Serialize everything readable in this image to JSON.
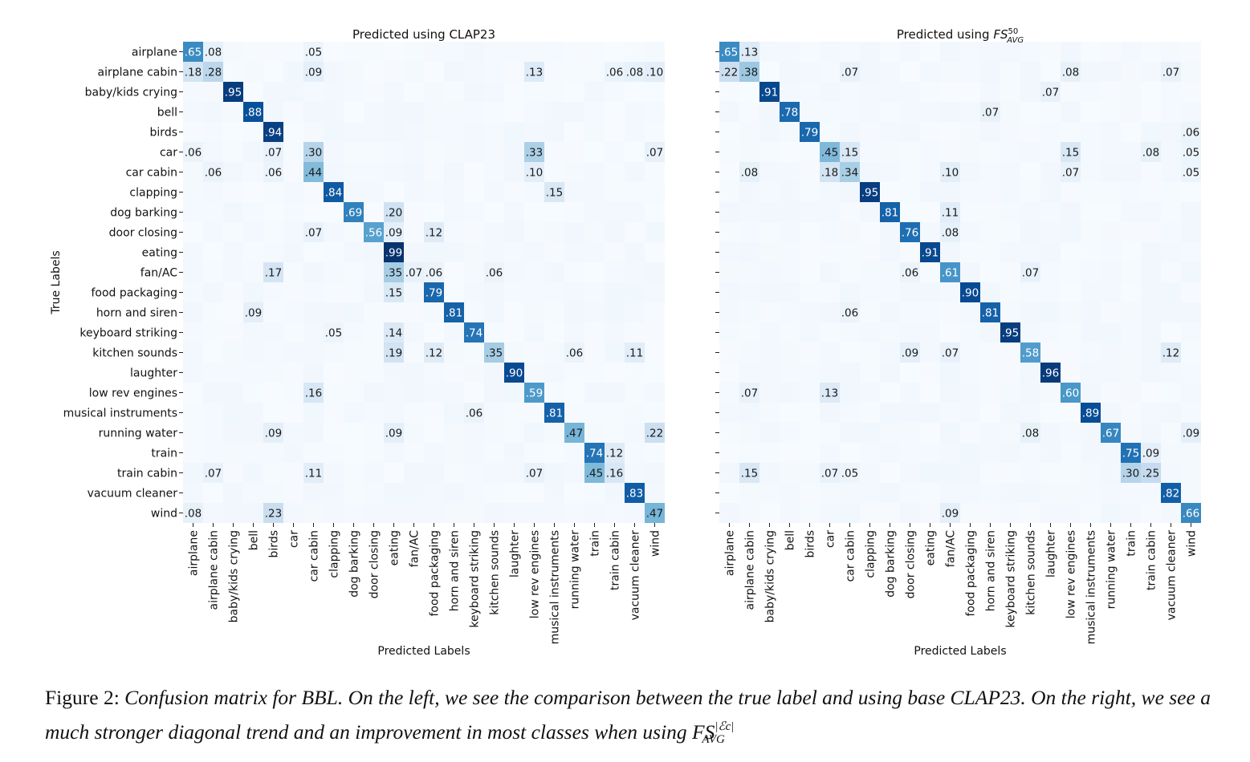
{
  "labels": [
    "airplane",
    "airplane cabin",
    "baby/kids crying",
    "bell",
    "birds",
    "car",
    "car cabin",
    "clapping",
    "dog barking",
    "door closing",
    "eating",
    "fan/AC",
    "food packaging",
    "horn and siren",
    "keyboard striking",
    "kitchen sounds",
    "laughter",
    "low rev engines",
    "musical instruments",
    "running water",
    "train",
    "train cabin",
    "vacuum cleaner",
    "wind"
  ],
  "chart_data": [
    {
      "type": "heatmap",
      "title_prefix": "Predicted using CLAP23",
      "title_math_base": "",
      "title_math_sup": "",
      "title_math_sub": "",
      "xlabel": "Predicted Labels",
      "ylabel": "True Labels",
      "show_row_labels": true,
      "colormap": "Blues",
      "value_range": [
        0,
        1
      ],
      "annotated_cells": [
        [
          0,
          0,
          ".65"
        ],
        [
          0,
          1,
          ".08"
        ],
        [
          0,
          6,
          ".05"
        ],
        [
          1,
          0,
          ".18"
        ],
        [
          1,
          1,
          ".28"
        ],
        [
          1,
          6,
          ".09"
        ],
        [
          1,
          17,
          ".13"
        ],
        [
          1,
          21,
          ".06"
        ],
        [
          1,
          22,
          ".08"
        ],
        [
          1,
          23,
          ".10"
        ],
        [
          2,
          2,
          ".95"
        ],
        [
          3,
          3,
          ".88"
        ],
        [
          4,
          4,
          ".94"
        ],
        [
          5,
          0,
          ".06"
        ],
        [
          5,
          4,
          ".07"
        ],
        [
          5,
          6,
          ".30"
        ],
        [
          5,
          17,
          ".33"
        ],
        [
          5,
          23,
          ".07"
        ],
        [
          6,
          1,
          ".06"
        ],
        [
          6,
          4,
          ".06"
        ],
        [
          6,
          6,
          ".44"
        ],
        [
          6,
          17,
          ".10"
        ],
        [
          7,
          7,
          ".84"
        ],
        [
          7,
          18,
          ".15"
        ],
        [
          8,
          8,
          ".69"
        ],
        [
          8,
          10,
          ".20"
        ],
        [
          9,
          6,
          ".07"
        ],
        [
          9,
          9,
          ".56"
        ],
        [
          9,
          10,
          ".09"
        ],
        [
          9,
          12,
          ".12"
        ],
        [
          10,
          10,
          ".99"
        ],
        [
          11,
          4,
          ".17"
        ],
        [
          11,
          10,
          ".35"
        ],
        [
          11,
          11,
          ".07"
        ],
        [
          11,
          12,
          ".06"
        ],
        [
          11,
          15,
          ".06"
        ],
        [
          12,
          10,
          ".15"
        ],
        [
          12,
          12,
          ".79"
        ],
        [
          13,
          3,
          ".09"
        ],
        [
          13,
          13,
          ".81"
        ],
        [
          14,
          7,
          ".05"
        ],
        [
          14,
          10,
          ".14"
        ],
        [
          14,
          14,
          ".74"
        ],
        [
          15,
          10,
          ".19"
        ],
        [
          15,
          12,
          ".12"
        ],
        [
          15,
          15,
          ".35"
        ],
        [
          15,
          19,
          ".06"
        ],
        [
          15,
          22,
          ".11"
        ],
        [
          16,
          16,
          ".90"
        ],
        [
          17,
          6,
          ".16"
        ],
        [
          17,
          17,
          ".59"
        ],
        [
          18,
          14,
          ".06"
        ],
        [
          18,
          18,
          ".81"
        ],
        [
          19,
          4,
          ".09"
        ],
        [
          19,
          10,
          ".09"
        ],
        [
          19,
          19,
          ".47"
        ],
        [
          19,
          23,
          ".22"
        ],
        [
          20,
          20,
          ".74"
        ],
        [
          20,
          21,
          ".12"
        ],
        [
          21,
          1,
          ".07"
        ],
        [
          21,
          6,
          ".11"
        ],
        [
          21,
          17,
          ".07"
        ],
        [
          21,
          20,
          ".45"
        ],
        [
          21,
          21,
          ".16"
        ],
        [
          22,
          22,
          ".83"
        ],
        [
          23,
          0,
          ".08"
        ],
        [
          23,
          4,
          ".23"
        ],
        [
          23,
          23,
          ".47"
        ]
      ]
    },
    {
      "type": "heatmap",
      "title_prefix": "Predicted using ",
      "title_math_base": "FS",
      "title_math_sup": "50",
      "title_math_sub": "AVG",
      "xlabel": "Predicted Labels",
      "ylabel": "",
      "show_row_labels": false,
      "colormap": "Blues",
      "value_range": [
        0,
        1
      ],
      "annotated_cells": [
        [
          0,
          0,
          ".65"
        ],
        [
          0,
          1,
          ".13"
        ],
        [
          1,
          0,
          ".22"
        ],
        [
          1,
          1,
          ".38"
        ],
        [
          1,
          6,
          ".07"
        ],
        [
          1,
          17,
          ".08"
        ],
        [
          1,
          22,
          ".07"
        ],
        [
          2,
          2,
          ".91"
        ],
        [
          2,
          16,
          ".07"
        ],
        [
          3,
          3,
          ".78"
        ],
        [
          3,
          13,
          ".07"
        ],
        [
          4,
          4,
          ".79"
        ],
        [
          4,
          23,
          ".06"
        ],
        [
          5,
          5,
          ".45"
        ],
        [
          5,
          6,
          ".15"
        ],
        [
          5,
          17,
          ".15"
        ],
        [
          5,
          21,
          ".08"
        ],
        [
          5,
          23,
          ".05"
        ],
        [
          6,
          1,
          ".08"
        ],
        [
          6,
          5,
          ".18"
        ],
        [
          6,
          6,
          ".34"
        ],
        [
          6,
          11,
          ".10"
        ],
        [
          6,
          17,
          ".07"
        ],
        [
          6,
          23,
          ".05"
        ],
        [
          7,
          7,
          ".95"
        ],
        [
          8,
          8,
          ".81"
        ],
        [
          8,
          11,
          ".11"
        ],
        [
          9,
          9,
          ".76"
        ],
        [
          9,
          11,
          ".08"
        ],
        [
          10,
          10,
          ".91"
        ],
        [
          11,
          9,
          ".06"
        ],
        [
          11,
          11,
          ".61"
        ],
        [
          11,
          15,
          ".07"
        ],
        [
          12,
          12,
          ".90"
        ],
        [
          13,
          6,
          ".06"
        ],
        [
          13,
          13,
          ".81"
        ],
        [
          14,
          14,
          ".95"
        ],
        [
          15,
          9,
          ".09"
        ],
        [
          15,
          11,
          ".07"
        ],
        [
          15,
          15,
          ".58"
        ],
        [
          15,
          22,
          ".12"
        ],
        [
          16,
          16,
          ".96"
        ],
        [
          17,
          1,
          ".07"
        ],
        [
          17,
          5,
          ".13"
        ],
        [
          17,
          17,
          ".60"
        ],
        [
          18,
          18,
          ".89"
        ],
        [
          19,
          15,
          ".08"
        ],
        [
          19,
          19,
          ".67"
        ],
        [
          19,
          23,
          ".09"
        ],
        [
          20,
          20,
          ".75"
        ],
        [
          20,
          21,
          ".09"
        ],
        [
          21,
          1,
          ".15"
        ],
        [
          21,
          5,
          ".07"
        ],
        [
          21,
          6,
          ".05"
        ],
        [
          21,
          20,
          ".30"
        ],
        [
          21,
          21,
          ".25"
        ],
        [
          22,
          22,
          ".82"
        ],
        [
          23,
          11,
          ".09"
        ],
        [
          23,
          23,
          ".66"
        ]
      ]
    }
  ],
  "caption": {
    "prefix": "Figure 2: ",
    "text": "Confusion matrix for BBL. On the left, we see the comparison between the true label and using base CLAP23. On the right, we see a much stronger diagonal trend and an improvement in most classes when using ",
    "math_base": "FS",
    "math_sup": "|ℰc|",
    "math_sub": "AVG"
  }
}
